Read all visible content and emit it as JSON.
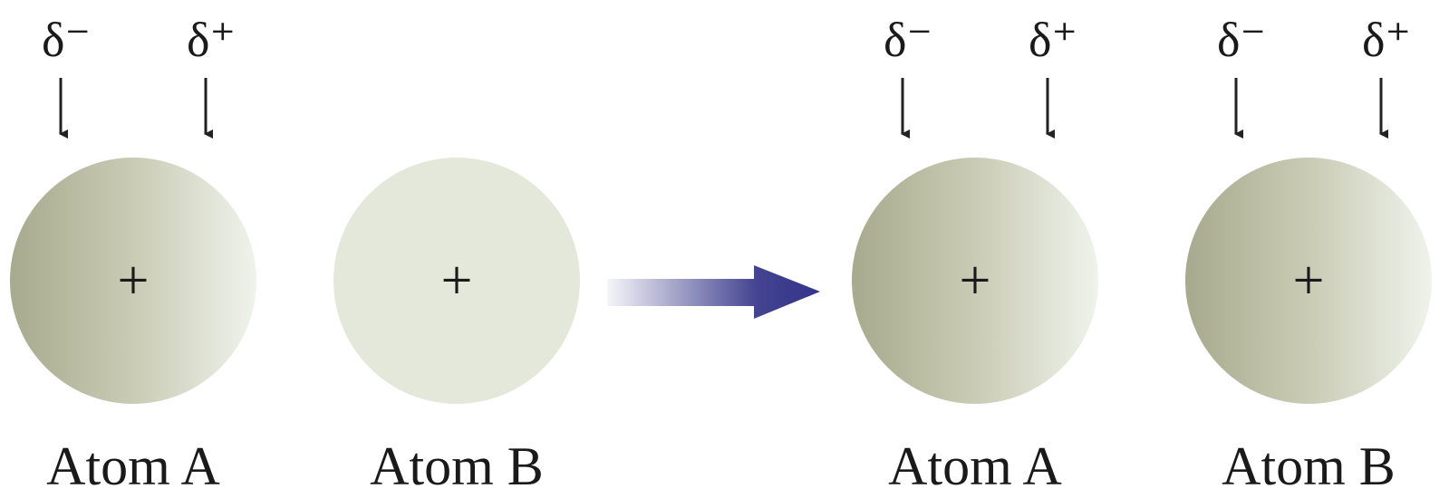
{
  "atoms": [
    {
      "label": "Atom A",
      "nucleus": "+",
      "charges": [
        "δ⁻",
        "δ⁺"
      ]
    },
    {
      "label": "Atom B",
      "nucleus": "+"
    },
    {
      "label": "Atom A",
      "nucleus": "+",
      "charges": [
        "δ⁻",
        "δ⁺"
      ]
    },
    {
      "label": "Atom B",
      "nucleus": "+",
      "charges": [
        "δ⁻",
        "δ⁺"
      ]
    }
  ]
}
